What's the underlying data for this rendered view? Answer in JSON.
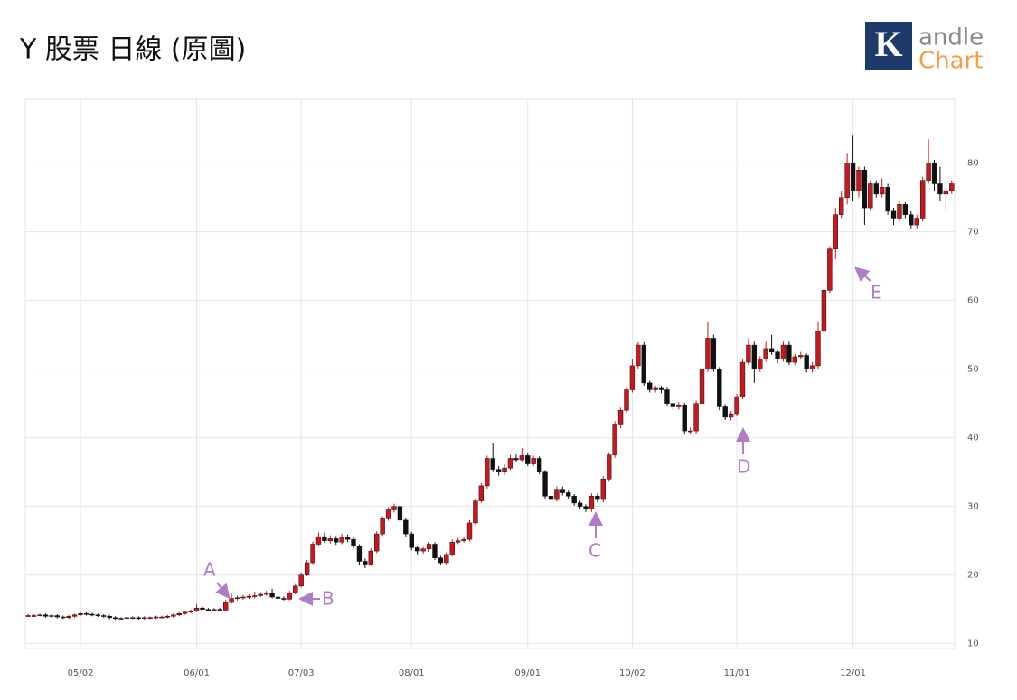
{
  "chart_data": {
    "type": "candlestick",
    "title": "Y 股票 日線 (原圖)",
    "categories": [
      null,
      null,
      null,
      null,
      null,
      null,
      null,
      null,
      null,
      "05/02",
      null,
      null,
      null,
      null,
      null,
      null,
      null,
      null,
      null,
      null,
      null,
      null,
      null,
      null,
      null,
      null,
      null,
      null,
      null,
      "06/01",
      null,
      null,
      null,
      null,
      null,
      null,
      null,
      null,
      null,
      null,
      null,
      null,
      null,
      null,
      null,
      null,
      null,
      "07/03",
      null,
      null,
      null,
      null,
      null,
      null,
      null,
      null,
      null,
      null,
      null,
      null,
      null,
      null,
      null,
      null,
      null,
      null,
      "08/01",
      null,
      null,
      null,
      null,
      null,
      null,
      null,
      null,
      null,
      null,
      null,
      null,
      null,
      null,
      null,
      null,
      null,
      null,
      null,
      "09/01",
      null,
      null,
      null,
      null,
      null,
      null,
      null,
      null,
      null,
      null,
      null,
      null,
      null,
      null,
      null,
      null,
      null,
      "10/02",
      null,
      null,
      null,
      null,
      null,
      null,
      null,
      null,
      null,
      null,
      null,
      null,
      null,
      null,
      null,
      null,
      null,
      "11/01",
      null,
      null,
      null,
      null,
      null,
      null,
      null,
      null,
      null,
      null,
      null,
      null,
      null,
      null,
      null,
      null,
      null,
      null,
      null,
      "12/01",
      null,
      null,
      null,
      null,
      null,
      null,
      null,
      null,
      null,
      null,
      null,
      null,
      null,
      null,
      null,
      null,
      null
    ],
    "open": [
      14.0,
      14.1,
      14.1,
      14.2,
      14.0,
      14.1,
      13.9,
      13.8,
      14.0,
      14.2,
      14.4,
      14.3,
      14.2,
      14.1,
      14.0,
      13.8,
      13.7,
      13.7,
      13.8,
      13.8,
      13.7,
      13.8,
      13.8,
      13.9,
      13.9,
      14.0,
      14.2,
      14.4,
      14.6,
      14.8,
      15.2,
      15.0,
      14.9,
      15.0,
      14.9,
      16.0,
      16.6,
      16.7,
      16.8,
      16.9,
      17.0,
      17.2,
      17.4,
      16.8,
      16.6,
      16.5,
      17.4,
      18.4,
      20.0,
      21.8,
      24.5,
      25.6,
      25.0,
      25.3,
      24.8,
      25.5,
      25.2,
      24.2,
      22.0,
      21.6,
      23.5,
      26.0,
      28.2,
      29.5,
      30.0,
      28.0,
      26.0,
      24.0,
      23.5,
      23.8,
      24.5,
      22.5,
      21.8,
      23.0,
      24.8,
      25.0,
      25.2,
      27.6,
      30.8,
      33.0,
      37.0,
      35.4,
      35.0,
      35.6,
      37.0,
      36.8,
      37.4,
      36.2,
      37.0,
      35.0,
      31.5,
      31.0,
      32.5,
      32.0,
      31.5,
      30.5,
      30.0,
      29.6,
      31.5,
      31.0,
      34.0,
      37.5,
      42.0,
      44.0,
      47.0,
      50.5,
      53.5,
      48.0,
      47.0,
      47.2,
      47.0,
      45.0,
      44.5,
      44.8,
      41.0,
      41.0,
      45.0,
      50.0,
      54.5,
      50.0,
      44.5,
      43.0,
      43.5,
      46.0,
      51.0,
      53.5,
      50.0,
      51.5,
      53.0,
      52.5,
      51.5,
      53.5,
      51.0,
      51.8,
      52.0,
      50.0,
      50.5,
      55.5,
      61.5,
      67.5,
      72.5,
      75.0,
      80.0,
      76.0,
      79.0,
      73.5,
      77.0,
      75.5,
      76.5,
      73.0,
      72.0,
      74.0,
      72.5,
      71.0,
      72.0,
      77.5,
      80.0,
      77.0,
      75.5,
      76.0
    ],
    "high": [
      14.3,
      14.3,
      14.4,
      14.4,
      14.3,
      14.3,
      14.1,
      14.2,
      14.4,
      14.6,
      14.6,
      14.5,
      14.4,
      14.3,
      14.2,
      14.0,
      13.9,
      14.0,
      14.0,
      14.0,
      14.0,
      14.0,
      14.1,
      14.1,
      14.2,
      14.4,
      14.6,
      14.8,
      15.0,
      15.8,
      15.4,
      15.2,
      15.2,
      15.2,
      16.4,
      17.4,
      17.0,
      17.1,
      17.2,
      17.6,
      17.5,
      17.7,
      18.0,
      17.1,
      16.9,
      17.7,
      18.7,
      20.4,
      22.2,
      24.9,
      26.2,
      26.2,
      25.8,
      25.7,
      26.0,
      25.9,
      25.6,
      24.5,
      22.4,
      23.9,
      26.4,
      28.6,
      29.9,
      30.4,
      30.3,
      28.3,
      26.3,
      24.3,
      24.1,
      24.8,
      24.8,
      22.8,
      23.3,
      25.2,
      25.4,
      25.5,
      28.0,
      31.2,
      33.4,
      37.4,
      39.3,
      35.9,
      36.1,
      37.5,
      37.6,
      38.5,
      37.8,
      37.4,
      37.3,
      35.3,
      31.9,
      32.9,
      32.9,
      32.3,
      31.8,
      30.8,
      30.3,
      31.9,
      31.9,
      34.4,
      37.9,
      42.4,
      44.4,
      47.4,
      51.5,
      53.9,
      53.9,
      48.3,
      47.6,
      47.6,
      47.3,
      45.4,
      45.2,
      45.1,
      41.5,
      45.4,
      50.5,
      56.8,
      55.0,
      50.3,
      44.9,
      43.9,
      46.4,
      51.4,
      54.5,
      54.0,
      51.9,
      54.0,
      55.0,
      52.9,
      54.0,
      54.0,
      52.2,
      52.5,
      52.3,
      51.0,
      56.8,
      61.9,
      67.9,
      73.5,
      76.0,
      81.5,
      84.0,
      79.5,
      79.5,
      77.5,
      77.5,
      77.8,
      77.0,
      73.5,
      74.5,
      74.3,
      73.0,
      72.5,
      78.0,
      83.5,
      80.5,
      79.5,
      76.5,
      77.5
    ],
    "low": [
      13.9,
      13.9,
      14.0,
      13.8,
      13.8,
      13.7,
      13.6,
      13.6,
      13.8,
      14.0,
      14.1,
      14.0,
      13.9,
      13.8,
      13.6,
      13.5,
      13.5,
      13.5,
      13.6,
      13.5,
      13.5,
      13.6,
      13.6,
      13.7,
      13.7,
      13.8,
      14.0,
      14.2,
      14.4,
      14.6,
      14.9,
      14.7,
      14.7,
      14.7,
      14.7,
      15.8,
      16.3,
      16.4,
      16.5,
      16.6,
      16.8,
      17.0,
      16.6,
      16.3,
      16.3,
      16.3,
      17.2,
      18.2,
      19.8,
      21.6,
      24.2,
      24.7,
      24.6,
      24.4,
      24.5,
      24.8,
      23.9,
      21.5,
      21.0,
      21.3,
      23.2,
      25.7,
      27.9,
      29.1,
      27.7,
      25.6,
      23.6,
      23.0,
      23.1,
      23.4,
      22.2,
      21.4,
      21.5,
      22.7,
      24.5,
      24.7,
      24.9,
      27.3,
      30.5,
      32.6,
      35.0,
      34.5,
      34.6,
      35.3,
      36.4,
      36.5,
      35.9,
      35.9,
      34.7,
      31.1,
      30.6,
      30.7,
      31.6,
      31.1,
      30.1,
      29.6,
      29.2,
      29.2,
      30.6,
      30.6,
      33.6,
      37.1,
      41.4,
      43.6,
      46.6,
      50.1,
      47.6,
      46.6,
      46.6,
      46.5,
      44.6,
      44.0,
      44.1,
      40.6,
      40.5,
      40.6,
      44.6,
      49.6,
      49.6,
      44.0,
      42.6,
      42.5,
      43.1,
      45.6,
      50.6,
      48.0,
      49.6,
      51.1,
      52.1,
      50.8,
      51.1,
      50.6,
      50.6,
      51.4,
      49.5,
      49.5,
      50.1,
      55.1,
      61.1,
      66.0,
      72.0,
      74.0,
      74.5,
      75.0,
      71.0,
      73.0,
      75.0,
      75.0,
      72.5,
      71.0,
      71.5,
      72.0,
      70.5,
      70.5,
      71.5,
      77.0,
      76.0,
      74.5,
      73.0,
      75.5
    ],
    "close": [
      14.1,
      14.1,
      14.2,
      14.0,
      14.1,
      13.9,
      13.8,
      14.0,
      14.2,
      14.4,
      14.3,
      14.2,
      14.1,
      14.0,
      13.8,
      13.7,
      13.7,
      13.8,
      13.8,
      13.7,
      13.8,
      13.8,
      13.9,
      13.9,
      14.0,
      14.2,
      14.4,
      14.6,
      14.8,
      15.2,
      15.0,
      14.9,
      15.0,
      14.9,
      16.0,
      16.6,
      16.7,
      16.8,
      16.9,
      17.0,
      17.2,
      17.4,
      16.8,
      16.6,
      16.5,
      17.4,
      18.4,
      20.0,
      21.8,
      24.5,
      25.6,
      25.0,
      25.3,
      24.8,
      25.5,
      25.2,
      24.2,
      22.0,
      21.6,
      23.5,
      26.0,
      28.2,
      29.5,
      30.0,
      28.0,
      26.0,
      24.0,
      23.5,
      23.8,
      24.5,
      22.5,
      21.8,
      23.0,
      24.8,
      25.0,
      25.2,
      27.6,
      30.8,
      33.0,
      37.0,
      35.4,
      35.0,
      35.6,
      37.0,
      36.8,
      37.4,
      36.2,
      37.0,
      35.0,
      31.5,
      31.0,
      32.5,
      32.0,
      31.5,
      30.5,
      30.0,
      29.6,
      31.5,
      31.0,
      34.0,
      37.5,
      42.0,
      44.0,
      47.0,
      50.5,
      53.5,
      48.0,
      47.0,
      47.2,
      47.0,
      45.0,
      44.5,
      44.8,
      41.0,
      41.0,
      45.0,
      50.0,
      54.5,
      50.0,
      44.5,
      43.0,
      43.5,
      46.0,
      51.0,
      53.5,
      50.0,
      51.5,
      53.0,
      52.5,
      51.5,
      53.5,
      51.0,
      51.8,
      52.0,
      50.0,
      50.5,
      55.5,
      61.5,
      67.5,
      72.5,
      75.0,
      80.0,
      76.0,
      79.0,
      73.5,
      77.0,
      75.5,
      76.5,
      73.0,
      72.0,
      74.0,
      72.5,
      71.0,
      72.0,
      77.5,
      80.0,
      77.0,
      75.5,
      76.0,
      77.0
    ],
    "up_color": "#c8181e",
    "down_color": "#111111",
    "ylim": [
      9.3,
      89.3
    ],
    "yticks": [
      10,
      20,
      30,
      40,
      50,
      60,
      70,
      80
    ],
    "grid": true,
    "annotations": [
      "A",
      "B",
      "C",
      "D",
      "E"
    ]
  },
  "logo": {
    "line1": "andle",
    "line2": "Chart"
  }
}
